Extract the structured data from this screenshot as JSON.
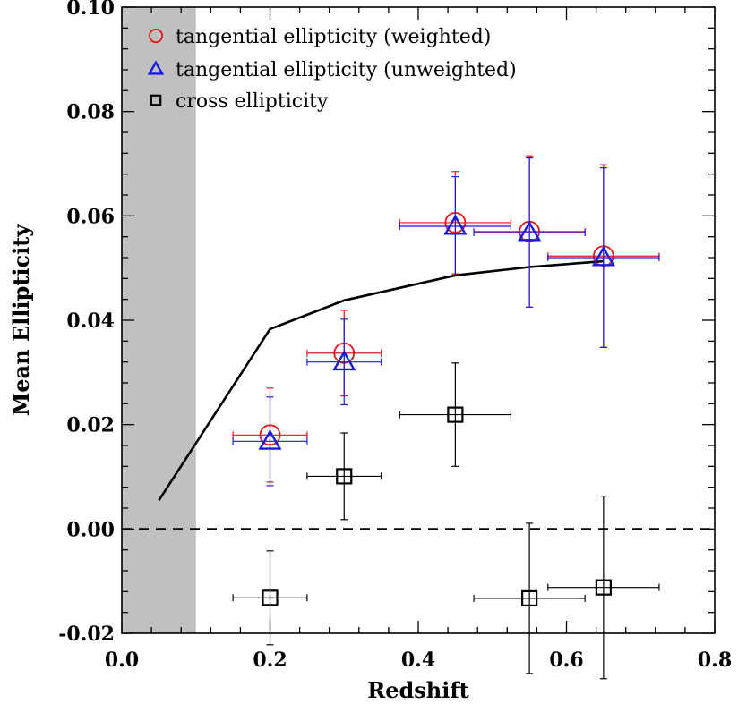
{
  "chart_data": {
    "type": "scatter",
    "title": "",
    "xlabel": "Redshift",
    "ylabel": "Mean Ellipticity",
    "xlim": [
      0.0,
      0.8
    ],
    "ylim": [
      -0.02,
      0.1
    ],
    "x_ticks": [
      0.0,
      0.2,
      0.4,
      0.6,
      0.8
    ],
    "y_ticks": [
      -0.02,
      0.0,
      0.02,
      0.04,
      0.06,
      0.08,
      0.1
    ],
    "x_tick_labels": [
      "0.0",
      "0.2",
      "0.4",
      "0.6",
      "0.8"
    ],
    "y_tick_labels": [
      "-0.02",
      "0.00",
      "0.02",
      "0.04",
      "0.06",
      "0.08",
      "0.10"
    ],
    "grid": false,
    "legend_position": "top-left",
    "shaded_band": {
      "x": [
        0.0,
        0.1
      ],
      "color": "#c0c0c0"
    },
    "reference_line": {
      "y": 0.0,
      "style": "dashed",
      "color": "#000000"
    },
    "model_line": {
      "color": "#000000",
      "points": [
        {
          "x": 0.05,
          "y": 0.0055
        },
        {
          "x": 0.2,
          "y": 0.0383
        },
        {
          "x": 0.3,
          "y": 0.0438
        },
        {
          "x": 0.45,
          "y": 0.0486
        },
        {
          "x": 0.55,
          "y": 0.0502
        },
        {
          "x": 0.65,
          "y": 0.0513
        }
      ]
    },
    "series": [
      {
        "name": "tangential ellipticity (weighted)",
        "marker": "circle",
        "color": "#e8141c",
        "points": [
          {
            "x": 0.2,
            "y": 0.018,
            "xerr": 0.05,
            "yerr": 0.009
          },
          {
            "x": 0.3,
            "y": 0.0337,
            "xerr": 0.05,
            "yerr": 0.0082
          },
          {
            "x": 0.45,
            "y": 0.0587,
            "xerr": 0.075,
            "yerr": 0.0098
          },
          {
            "x": 0.55,
            "y": 0.057,
            "xerr": 0.075,
            "yerr": 0.0145
          },
          {
            "x": 0.65,
            "y": 0.0523,
            "xerr": 0.075,
            "yerr": 0.0175
          }
        ]
      },
      {
        "name": "tangential ellipticity (unweighted)",
        "marker": "triangle",
        "color": "#1a1adb",
        "points": [
          {
            "x": 0.2,
            "y": 0.0168,
            "xerr": 0.05,
            "yerr": 0.0085
          },
          {
            "x": 0.3,
            "y": 0.032,
            "xerr": 0.05,
            "yerr": 0.0082
          },
          {
            "x": 0.45,
            "y": 0.058,
            "xerr": 0.075,
            "yerr": 0.0095
          },
          {
            "x": 0.55,
            "y": 0.0568,
            "xerr": 0.075,
            "yerr": 0.0143
          },
          {
            "x": 0.65,
            "y": 0.052,
            "xerr": 0.075,
            "yerr": 0.0172
          }
        ]
      },
      {
        "name": "cross ellipticity",
        "marker": "square",
        "color": "#000000",
        "points": [
          {
            "x": 0.2,
            "y": -0.0132,
            "xerr": 0.05,
            "yerr": 0.009
          },
          {
            "x": 0.3,
            "y": 0.0101,
            "xerr": 0.05,
            "yerr": 0.0083
          },
          {
            "x": 0.45,
            "y": 0.0219,
            "xerr": 0.075,
            "yerr": 0.0099
          },
          {
            "x": 0.55,
            "y": -0.0133,
            "xerr": 0.075,
            "yerr": 0.0144
          },
          {
            "x": 0.65,
            "y": -0.0112,
            "xerr": 0.075,
            "yerr": 0.0175
          }
        ]
      }
    ]
  }
}
